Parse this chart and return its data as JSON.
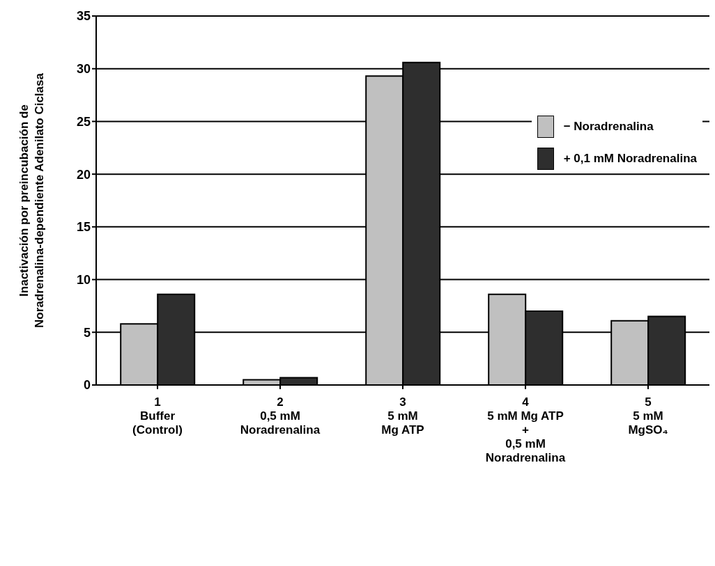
{
  "chart_data": {
    "type": "bar",
    "ylabel": "Inactivación por preincubación de\nNoradrenalina-dependiente Adenilato Ciclasa",
    "categories": [
      "1\nBuffer\n(Control)",
      "2\n0,5 mM\nNoradrenalina",
      "3\n5 mM\nMg ATP",
      "4\n5 mM Mg ATP\n+\n0,5 mM\nNoradrenalina",
      "5\n5 mM\nMgSO₄"
    ],
    "series": [
      {
        "name": "− Noradrenalina",
        "color": "#c0c0c0",
        "values": [
          5.8,
          0.5,
          29.3,
          8.6,
          6.1
        ]
      },
      {
        "name": "+ 0,1 mM Noradrenalina",
        "color": "#2e2e2e",
        "values": [
          8.6,
          0.7,
          30.6,
          7.0,
          6.5
        ]
      }
    ],
    "ylim": [
      0,
      35
    ],
    "yticks": [
      0,
      5,
      10,
      15,
      20,
      25,
      30,
      35
    ],
    "grid": "y",
    "legend": "top right"
  }
}
